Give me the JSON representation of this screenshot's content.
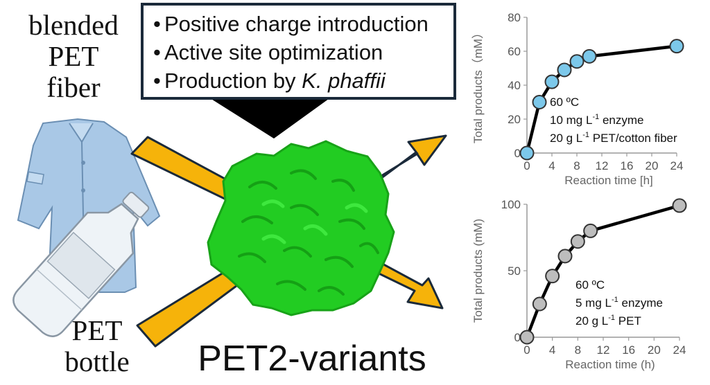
{
  "left_labels": {
    "top_lines": [
      "blended",
      "PET",
      "fiber"
    ],
    "bottom_lines": [
      "PET",
      "bottle"
    ]
  },
  "features": {
    "items": [
      {
        "text": "Positive charge introduction",
        "italic": ""
      },
      {
        "text": "Active site optimization",
        "italic": ""
      },
      {
        "text": "Production by ",
        "italic": "K. phaffii"
      }
    ]
  },
  "title": "PET2-variants",
  "colors": {
    "arrow_fill": "#f6b30a",
    "arrow_outline": "#1b2a3a",
    "protein": "#22cc22",
    "chart1_marker": "#7cc8ea",
    "chart2_marker": "#bdbdbd"
  },
  "chart_data": [
    {
      "type": "line",
      "x": [
        0,
        2,
        4,
        6,
        8,
        10,
        24
      ],
      "series": [
        {
          "values": [
            0,
            30,
            42,
            49,
            54,
            57,
            63
          ]
        }
      ],
      "ylabel": "Total products（mM）",
      "xlabel": "Reaction time [h]",
      "xticks": [
        0,
        4,
        8,
        12,
        16,
        20,
        24
      ],
      "yticks": [
        0,
        20,
        40,
        60,
        80
      ],
      "xlim": [
        0,
        24
      ],
      "ylim": [
        0,
        80
      ],
      "annotations": [
        {
          "pre": "60 ºC",
          "sup": "",
          "post": ""
        },
        {
          "pre": "10 mg L",
          "sup": "-1",
          "post": " enzyme"
        },
        {
          "pre": "20 g L",
          "sup": "-1",
          "post": " PET/cotton fiber"
        }
      ]
    },
    {
      "type": "line",
      "x": [
        0,
        2,
        4,
        6,
        8,
        10,
        24
      ],
      "series": [
        {
          "values": [
            0,
            25,
            46,
            61,
            72,
            80,
            99
          ]
        }
      ],
      "ylabel": "Total products (mM)",
      "xlabel": "Reaction time (h)",
      "xticks": [
        0,
        4,
        8,
        12,
        16,
        20,
        24
      ],
      "yticks": [
        0,
        50,
        100
      ],
      "xlim": [
        0,
        24
      ],
      "ylim": [
        0,
        100
      ],
      "annotations": [
        {
          "pre": "60 ºC",
          "sup": "",
          "post": ""
        },
        {
          "pre": "5 mg L",
          "sup": "-1",
          "post": " enzyme"
        },
        {
          "pre": "20 g L",
          "sup": "-1",
          "post": " PET"
        }
      ]
    }
  ]
}
